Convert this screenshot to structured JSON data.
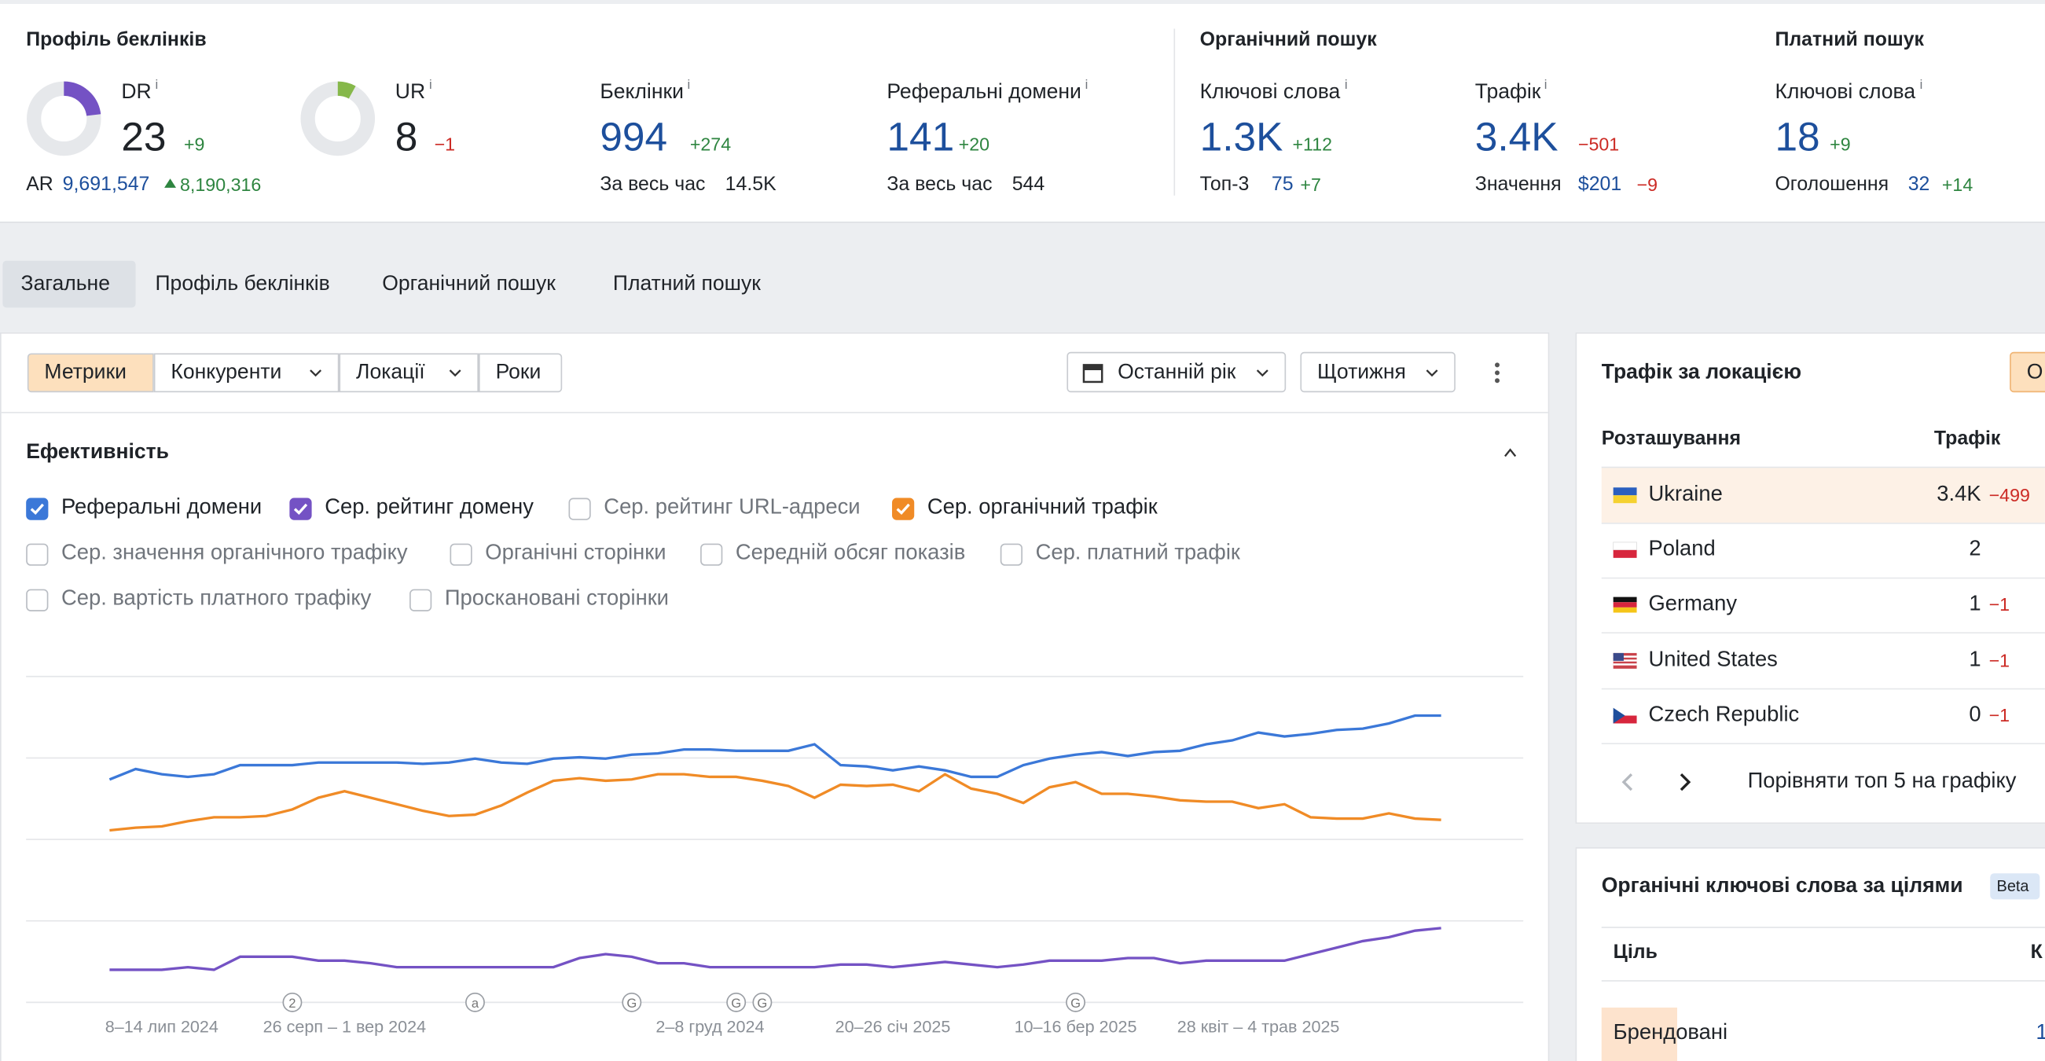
{
  "backlink_profile": {
    "title": "Профіль беклінків",
    "dr": {
      "label": "DR",
      "info": "i",
      "value": 23,
      "range": [
        0,
        100
      ],
      "change": "+9"
    },
    "ar": {
      "label": "AR",
      "value": "9,691,547",
      "change": "8,190,316"
    },
    "ur": {
      "label": "UR",
      "info": "i",
      "value": 8,
      "range": [
        0,
        100
      ],
      "change": "−1"
    },
    "backlinks": {
      "label": "Беклінки",
      "info": "i",
      "value": "994",
      "change": "+274",
      "sub_label": "За весь час",
      "sub_value": "14.5K"
    },
    "ref_domains": {
      "label": "Реферальні домени",
      "info": "i",
      "value": "141",
      "change": "+20",
      "sub_label": "За весь час",
      "sub_value": "544"
    }
  },
  "organic": {
    "title": "Органічний пошук",
    "keywords": {
      "label": "Ключові слова",
      "info": "i",
      "value": "1.3K",
      "change": "+112",
      "sub_label": "Топ-3",
      "sub_value": "75",
      "sub_change": "+7"
    },
    "traffic": {
      "label": "Трафік",
      "info": "i",
      "value": "3.4K",
      "change": "−501",
      "sub_label": "Значення",
      "sub_value": "$201",
      "sub_change": "−9"
    }
  },
  "paid": {
    "title": "Платний пошук",
    "keywords": {
      "label": "Ключові слова",
      "info": "i",
      "value": "18",
      "change": "+9",
      "sub_label": "Оголошення",
      "sub_value": "32",
      "sub_change": "+14"
    }
  },
  "tabs": [
    "Загальне",
    "Профіль беклінків",
    "Органічний пошук",
    "Платний пошук"
  ],
  "subtabs": [
    "Метрики",
    "Конкуренти",
    "Локації",
    "Роки"
  ],
  "date_range": "Останній рік",
  "interval": "Щотижня",
  "performance": {
    "title": "Ефективність",
    "checkboxes": [
      {
        "label": "Реферальні домени",
        "checked": true,
        "color": "#3b78d8"
      },
      {
        "label": "Сер. рейтинг домену",
        "checked": true,
        "color": "#7452c4"
      },
      {
        "label": "Сер. рейтинг URL-адреси",
        "checked": false
      },
      {
        "label": "Сер. органічний трафік",
        "checked": true,
        "color": "#f08b26"
      },
      {
        "label": "Сер. значення органічного трафіку",
        "checked": false
      },
      {
        "label": "Органічні сторінки",
        "checked": false
      },
      {
        "label": "Середній обсяг показів",
        "checked": false
      },
      {
        "label": "Сер. платний трафік",
        "checked": false
      },
      {
        "label": "Сер. вартість платного трафіку",
        "checked": false
      },
      {
        "label": "Проскановані сторінки",
        "checked": false
      }
    ],
    "chart_data": {
      "type": "line",
      "ylim": [
        0,
        100
      ],
      "gridlines": [
        0,
        25,
        50,
        75,
        100
      ],
      "grid": true,
      "categories": [
        null,
        null,
        "8–14 лип 2024",
        null,
        null,
        null,
        null,
        null,
        null,
        "26 серп – 1 вер 2024",
        null,
        null,
        null,
        null,
        null,
        null,
        null,
        null,
        null,
        null,
        null,
        null,
        null,
        "2–8 груд 2024",
        null,
        null,
        null,
        null,
        null,
        null,
        "20–26 січ 2025",
        null,
        null,
        null,
        null,
        null,
        null,
        "10–16 бер 2025",
        null,
        null,
        null,
        null,
        null,
        null,
        "28 квіт – 4 трав 2025",
        null,
        null,
        null,
        null,
        null,
        null,
        null
      ],
      "annotations": [
        null,
        null,
        null,
        null,
        null,
        null,
        null,
        "2",
        null,
        null,
        null,
        null,
        null,
        null,
        "a",
        null,
        null,
        null,
        null,
        null,
        "G",
        null,
        null,
        null,
        "G",
        "G",
        null,
        null,
        null,
        null,
        null,
        null,
        null,
        null,
        null,
        null,
        null,
        "G",
        null,
        null,
        null,
        null,
        null,
        null,
        null,
        null,
        null,
        null,
        null,
        null,
        null,
        null
      ],
      "series": [
        {
          "name": "Реферальні домени",
          "color": "#3b78d8",
          "values": [
            68.4,
            71.6,
            70,
            69.2,
            70,
            72.8,
            72.8,
            72.8,
            73.6,
            73.6,
            73.6,
            73.6,
            73.2,
            73.6,
            74.8,
            73.6,
            73.2,
            74.8,
            75.2,
            74.8,
            76,
            76.4,
            77.6,
            77.6,
            77.2,
            77.2,
            77.2,
            79.2,
            72.8,
            72.4,
            71.2,
            72.4,
            71.2,
            69.2,
            69.2,
            72.8,
            74.8,
            76,
            76.8,
            75.6,
            76.8,
            77.2,
            79.2,
            80.4,
            82.8,
            81.6,
            82.4,
            83.6,
            84,
            85.6,
            88,
            88
          ]
        },
        {
          "name": "Сер. органічний трафік",
          "color": "#f08b26",
          "values": [
            52.8,
            53.6,
            54,
            55.6,
            56.8,
            56.8,
            57.2,
            59.2,
            62.8,
            64.8,
            62.8,
            60.8,
            58.8,
            57.2,
            57.6,
            60.4,
            64.4,
            68,
            68.8,
            68,
            68.4,
            70,
            70,
            69.2,
            69.2,
            68,
            66.4,
            62.8,
            66.8,
            66.4,
            66.8,
            64.8,
            70,
            65.6,
            64,
            61.2,
            66,
            67.6,
            64,
            64,
            63.2,
            62,
            61.6,
            61.6,
            59.6,
            60.8,
            56.8,
            56.4,
            56.4,
            58,
            56.4,
            56
          ]
        },
        {
          "name": "Сер. рейтинг домену",
          "color": "#7452c4",
          "values": [
            10,
            10,
            10,
            10.8,
            10,
            14,
            14,
            14,
            12.8,
            12.8,
            12,
            10.8,
            10.8,
            10.8,
            10.8,
            10.8,
            10.8,
            10.8,
            13.6,
            14.8,
            14,
            12,
            12,
            10.8,
            10.8,
            10.8,
            10.8,
            10.8,
            11.6,
            11.6,
            10.8,
            11.6,
            12.4,
            11.6,
            10.8,
            11.6,
            12.8,
            12.8,
            12.8,
            13.6,
            13.6,
            12,
            12.8,
            12.8,
            12.8,
            12.8,
            14.8,
            16.8,
            18.8,
            20,
            22,
            22.8
          ]
        }
      ]
    }
  },
  "location": {
    "title": "Трафік за локацією",
    "button": "О",
    "columns": [
      "Розташування",
      "Трафік"
    ],
    "rows": [
      [
        "Ukraine",
        "3.4K",
        "−499"
      ],
      [
        "Poland",
        "2",
        null
      ],
      [
        "Germany",
        "1",
        "−1"
      ],
      [
        "United States",
        "1",
        "−1"
      ],
      [
        "Czech Republic",
        "0",
        "−1"
      ]
    ],
    "compare": "Порівняти топ 5 на графіку"
  },
  "intent": {
    "title": "Органічні ключові слова за цілями",
    "badge": "Beta",
    "columns": [
      "Ціль",
      "К"
    ],
    "rows": [
      [
        "Брендовані",
        "1"
      ]
    ]
  }
}
